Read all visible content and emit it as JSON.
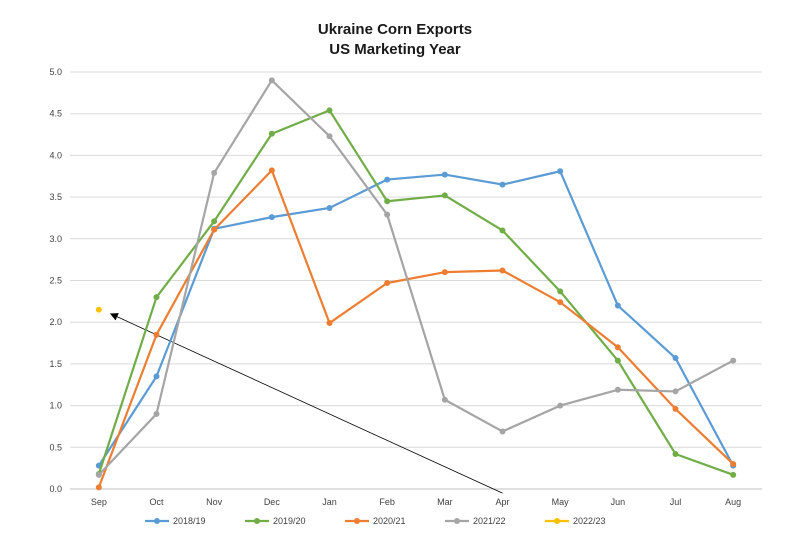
{
  "chart_data": {
    "type": "line",
    "title": "Ukraine Corn Exports",
    "subtitle": "US Marketing Year",
    "xlabel": "",
    "ylabel": "",
    "categories": [
      "Sep",
      "Oct",
      "Nov",
      "Dec",
      "Jan",
      "Feb",
      "Mar",
      "Apr",
      "May",
      "Jun",
      "Jul",
      "Aug"
    ],
    "ylim": [
      0,
      5.0
    ],
    "yticks": [
      "0.0",
      "0.5",
      "1.0",
      "1.5",
      "2.0",
      "2.5",
      "3.0",
      "3.5",
      "4.0",
      "4.5",
      "5.0"
    ],
    "grid": "horizontal",
    "legend": "bottom",
    "series": [
      {
        "name": "2018/19",
        "color": "#5B9BD5",
        "values": [
          0.28,
          1.35,
          3.12,
          3.26,
          3.37,
          3.71,
          3.77,
          3.65,
          3.81,
          2.2,
          1.57,
          0.28
        ]
      },
      {
        "name": "2019/20",
        "color": "#70AD47",
        "values": [
          0.18,
          2.3,
          3.21,
          4.26,
          4.54,
          3.45,
          3.52,
          3.1,
          2.37,
          1.54,
          0.42,
          0.17
        ]
      },
      {
        "name": "2020/21",
        "color": "#ED7D31",
        "values": [
          0.02,
          1.85,
          3.11,
          3.82,
          1.99,
          2.47,
          2.6,
          2.62,
          2.24,
          1.7,
          0.96,
          0.3
        ]
      },
      {
        "name": "2021/22",
        "color": "#A5A5A5",
        "values": [
          0.17,
          0.9,
          3.79,
          4.9,
          4.23,
          3.29,
          1.07,
          0.69,
          1.0,
          1.19,
          1.17,
          1.54
        ]
      },
      {
        "name": "2022/23",
        "color": "#FFC000",
        "values": [
          2.15,
          null,
          null,
          null,
          null,
          null,
          null,
          null,
          null,
          null,
          null,
          null
        ]
      }
    ],
    "annotations": [
      {
        "type": "arrow",
        "from": {
          "category": "Apr",
          "y": -0.05
        },
        "to": {
          "category": "Sep",
          "y": 2.1
        }
      }
    ]
  }
}
